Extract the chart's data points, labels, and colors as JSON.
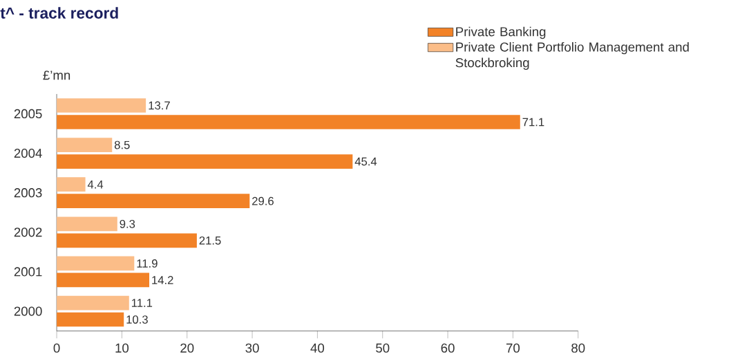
{
  "chart_data": {
    "type": "bar",
    "orientation": "horizontal",
    "title": "t^ - track record",
    "ylabel": "£’mn",
    "categories": [
      "2005",
      "2004",
      "2003",
      "2002",
      "2001",
      "2000"
    ],
    "series": [
      {
        "name": "Private Banking",
        "color": "#f28227",
        "values": [
          71.1,
          45.4,
          29.6,
          21.5,
          14.2,
          10.3
        ]
      },
      {
        "name": "Private Client Portfolio Management and Stockbroking",
        "color": "#fbbd88",
        "values": [
          13.7,
          8.5,
          4.4,
          9.3,
          11.9,
          11.1
        ]
      }
    ],
    "xlim": [
      0,
      80
    ],
    "xticks": [
      0,
      10,
      20,
      30,
      40,
      50,
      60,
      70,
      80
    ],
    "data_labels": true,
    "legend": "top right",
    "grid": false
  }
}
